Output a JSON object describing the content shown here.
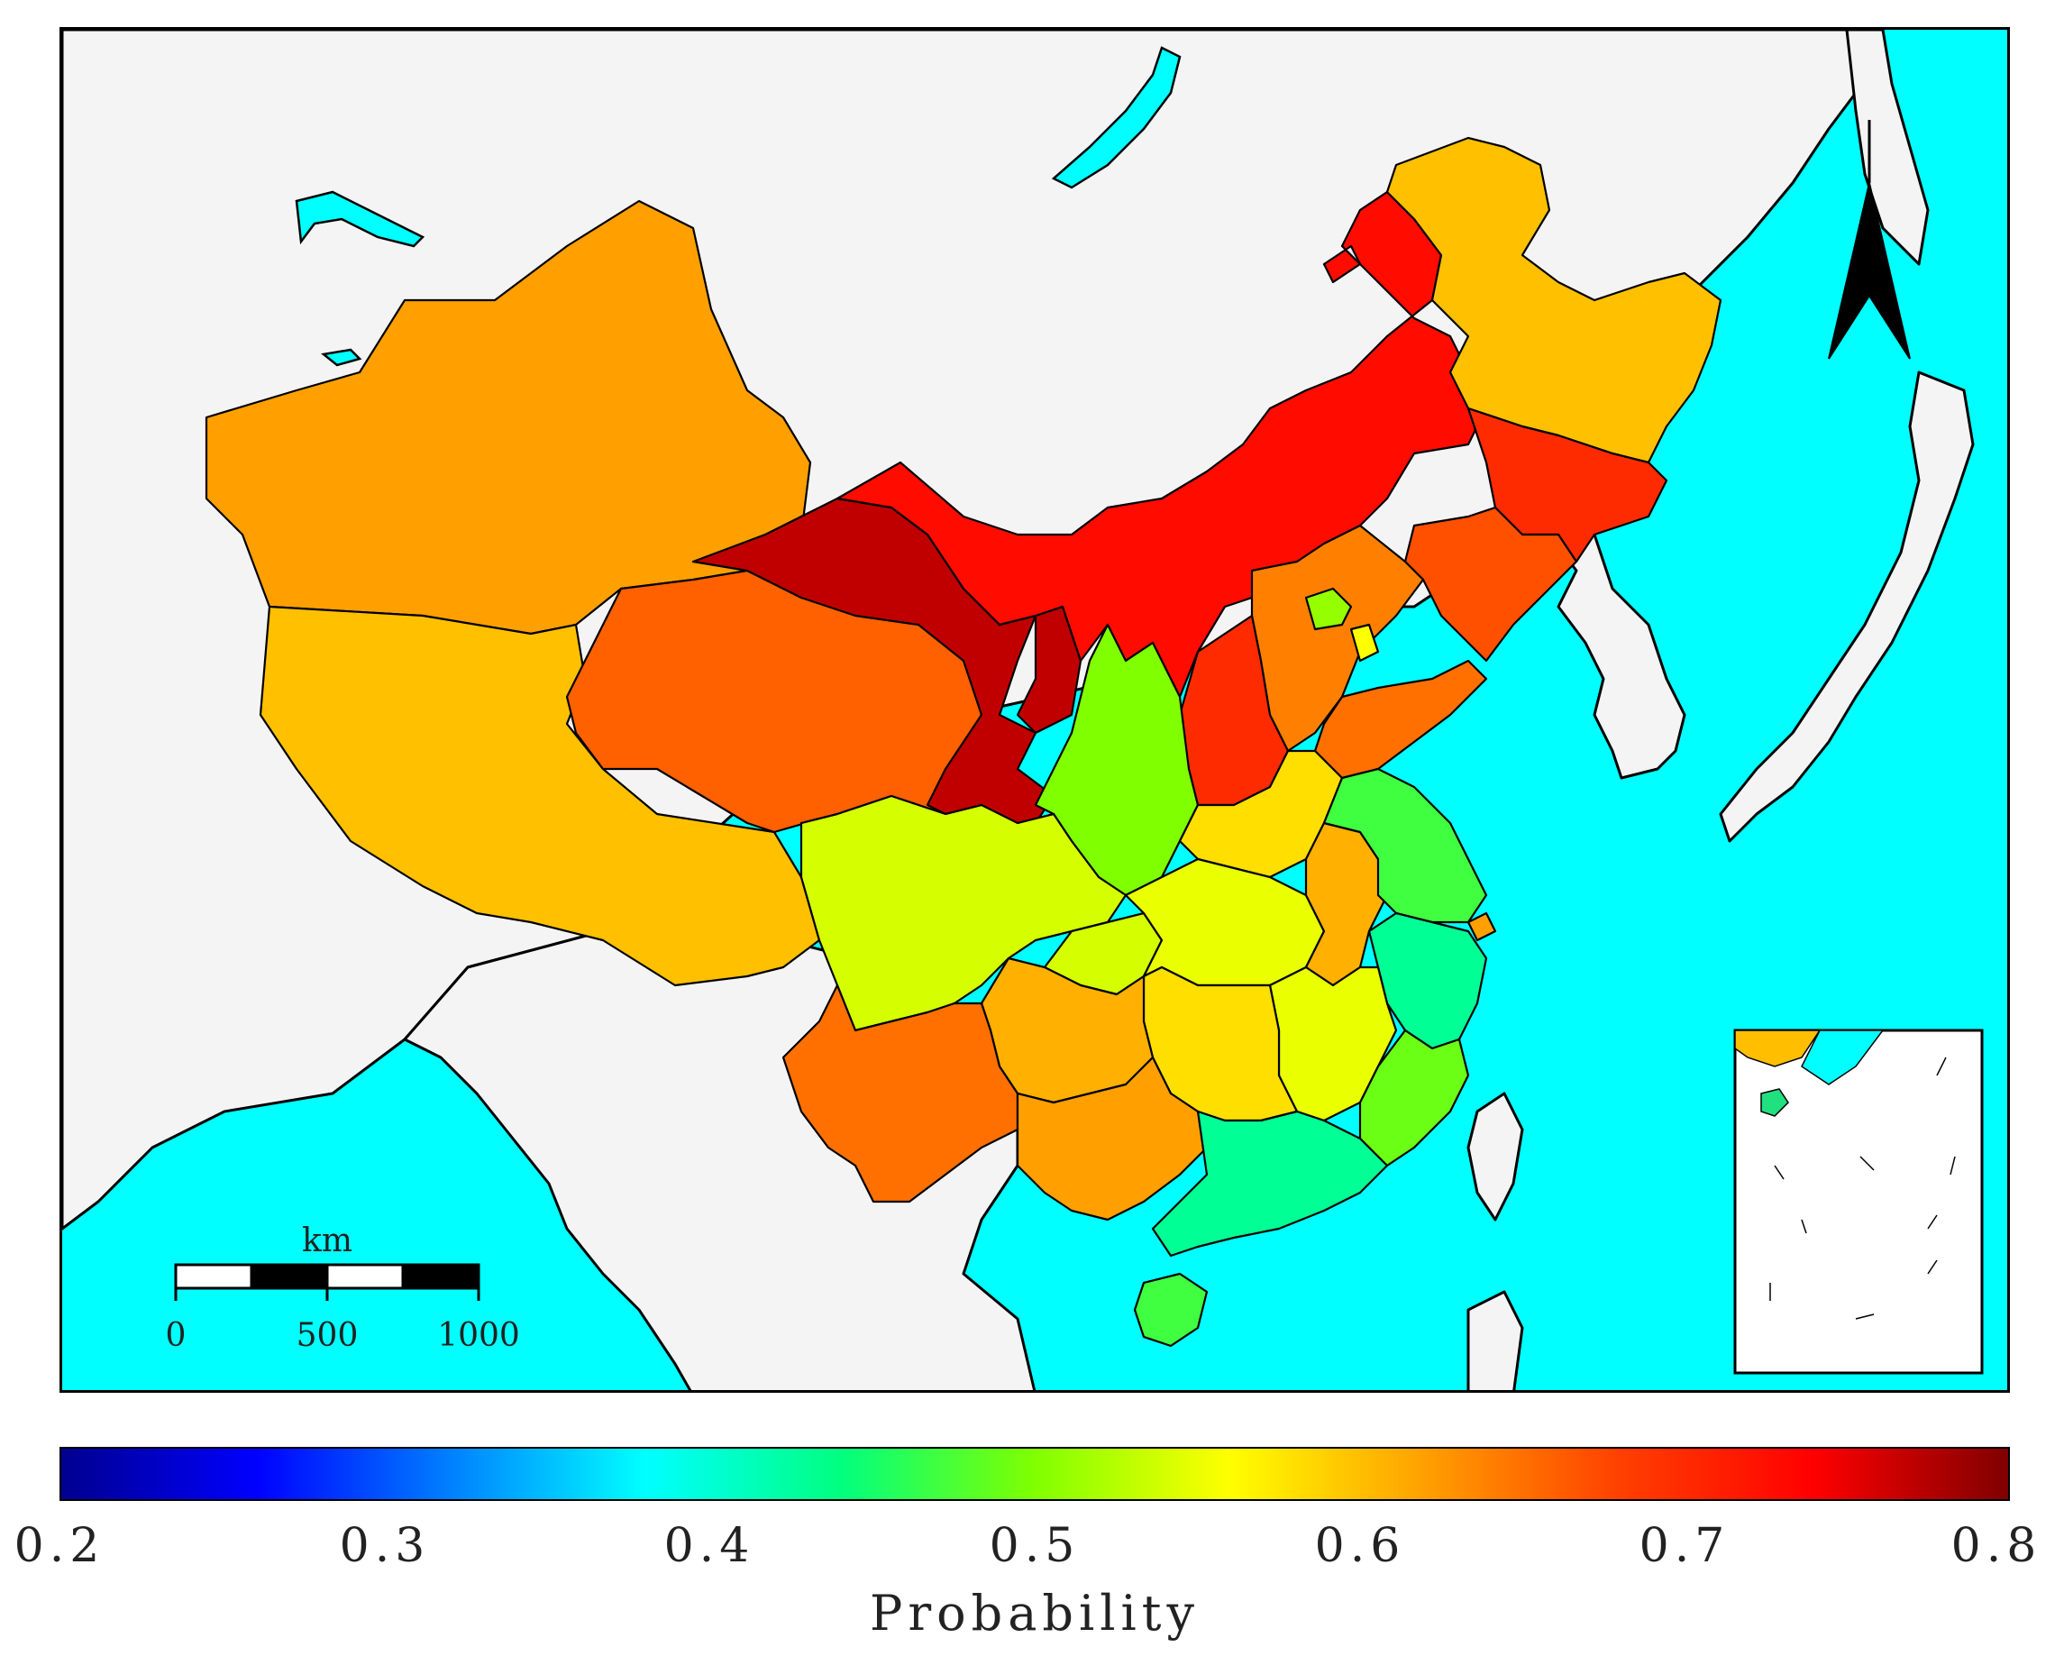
{
  "colorbar": {
    "label": "Probability",
    "min": 0.2,
    "max": 0.8,
    "ticks": [
      "0.2",
      "0.3",
      "0.4",
      "0.5",
      "0.6",
      "0.7",
      "0.8"
    ],
    "colors": [
      "#00008f",
      "#0000ff",
      "#0080ff",
      "#00ffff",
      "#00ff80",
      "#80ff00",
      "#ffff00",
      "#ffa000",
      "#ff4000",
      "#ff0000",
      "#800000"
    ]
  },
  "scale_bar": {
    "unit": "km",
    "labels": [
      "0",
      "500",
      "1000"
    ]
  },
  "colors": {
    "sea": "#00ffff",
    "land": "#f4f4f4",
    "border": "#000000"
  },
  "icons": [
    "north-arrow-icon"
  ],
  "regions": [
    {
      "id": "heilongjiang",
      "probability": 0.6
    },
    {
      "id": "inner-mongolia",
      "probability": 0.73
    },
    {
      "id": "jilin",
      "probability": 0.7
    },
    {
      "id": "liaoning",
      "probability": 0.67
    },
    {
      "id": "xinjiang",
      "probability": 0.62
    },
    {
      "id": "tibet",
      "probability": 0.6
    },
    {
      "id": "qinghai",
      "probability": 0.66
    },
    {
      "id": "gansu",
      "probability": 0.77
    },
    {
      "id": "ningxia",
      "probability": 0.77
    },
    {
      "id": "shaanxi",
      "probability": 0.5
    },
    {
      "id": "shanxi",
      "probability": 0.7
    },
    {
      "id": "hebei",
      "probability": 0.64
    },
    {
      "id": "beijing",
      "probability": 0.51
    },
    {
      "id": "tianjin",
      "probability": 0.56
    },
    {
      "id": "shandong",
      "probability": 0.65
    },
    {
      "id": "henan",
      "probability": 0.58
    },
    {
      "id": "sichuan",
      "probability": 0.54
    },
    {
      "id": "chongqing",
      "probability": 0.54
    },
    {
      "id": "hubei",
      "probability": 0.55
    },
    {
      "id": "anhui",
      "probability": 0.61
    },
    {
      "id": "jiangsu",
      "probability": 0.47
    },
    {
      "id": "shanghai",
      "probability": 0.62
    },
    {
      "id": "zhejiang",
      "probability": 0.43
    },
    {
      "id": "jiangxi",
      "probability": 0.55
    },
    {
      "id": "hunan",
      "probability": 0.58
    },
    {
      "id": "guizhou",
      "probability": 0.61
    },
    {
      "id": "yunnan",
      "probability": 0.65
    },
    {
      "id": "guangxi",
      "probability": 0.62
    },
    {
      "id": "guangdong",
      "probability": 0.43
    },
    {
      "id": "fujian",
      "probability": 0.49
    },
    {
      "id": "hainan",
      "probability": 0.47
    },
    {
      "id": "taiwan",
      "probability": null
    }
  ]
}
